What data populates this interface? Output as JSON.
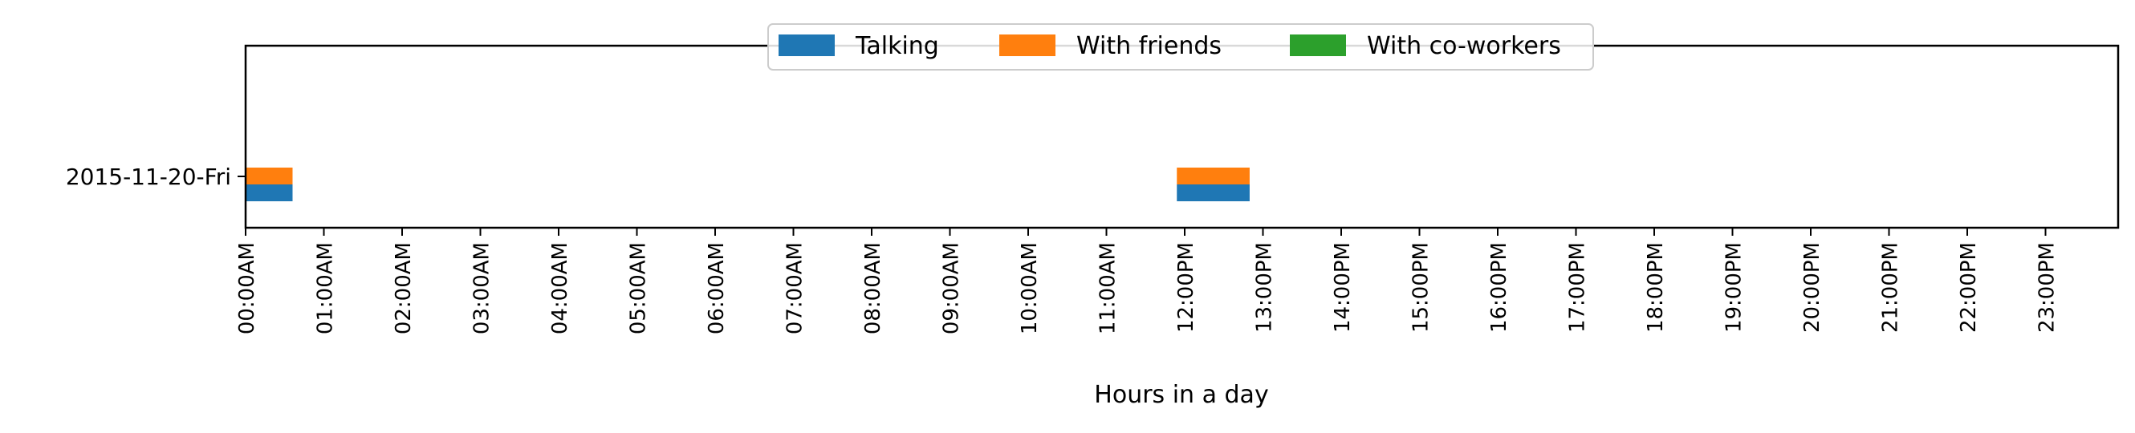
{
  "chart_data": {
    "type": "bar",
    "orientation": "horizontal",
    "xlabel": "Hours in a day",
    "ylabel": "",
    "xlim": [
      0,
      24
    ],
    "x_ticks": [
      {
        "hour": 0,
        "label": "00:00AM"
      },
      {
        "hour": 1,
        "label": "01:00AM"
      },
      {
        "hour": 2,
        "label": "02:00AM"
      },
      {
        "hour": 3,
        "label": "03:00AM"
      },
      {
        "hour": 4,
        "label": "04:00AM"
      },
      {
        "hour": 5,
        "label": "05:00AM"
      },
      {
        "hour": 6,
        "label": "06:00AM"
      },
      {
        "hour": 7,
        "label": "07:00AM"
      },
      {
        "hour": 8,
        "label": "08:00AM"
      },
      {
        "hour": 9,
        "label": "09:00AM"
      },
      {
        "hour": 10,
        "label": "10:00AM"
      },
      {
        "hour": 11,
        "label": "11:00AM"
      },
      {
        "hour": 12,
        "label": "12:00PM"
      },
      {
        "hour": 13,
        "label": "13:00PM"
      },
      {
        "hour": 14,
        "label": "14:00PM"
      },
      {
        "hour": 15,
        "label": "15:00PM"
      },
      {
        "hour": 16,
        "label": "16:00PM"
      },
      {
        "hour": 17,
        "label": "17:00PM"
      },
      {
        "hour": 18,
        "label": "18:00PM"
      },
      {
        "hour": 19,
        "label": "19:00PM"
      },
      {
        "hour": 20,
        "label": "20:00PM"
      },
      {
        "hour": 21,
        "label": "21:00PM"
      },
      {
        "hour": 22,
        "label": "22:00PM"
      },
      {
        "hour": 23,
        "label": "23:00PM"
      }
    ],
    "categories": [
      "2015-11-20-Fri"
    ],
    "legend_position": "top-center",
    "grid": false,
    "series": [
      {
        "name": "Talking",
        "color": "#1f77b4",
        "intervals": [
          {
            "category": "2015-11-20-Fri",
            "start": 0.0,
            "end": 0.6
          },
          {
            "category": "2015-11-20-Fri",
            "start": 11.9,
            "end": 12.83
          }
        ]
      },
      {
        "name": "With friends",
        "color": "#ff7f0e",
        "intervals": [
          {
            "category": "2015-11-20-Fri",
            "start": 0.0,
            "end": 0.6
          },
          {
            "category": "2015-11-20-Fri",
            "start": 11.9,
            "end": 12.83
          }
        ]
      },
      {
        "name": "With co-workers",
        "color": "#2ca02c",
        "intervals": []
      }
    ]
  }
}
